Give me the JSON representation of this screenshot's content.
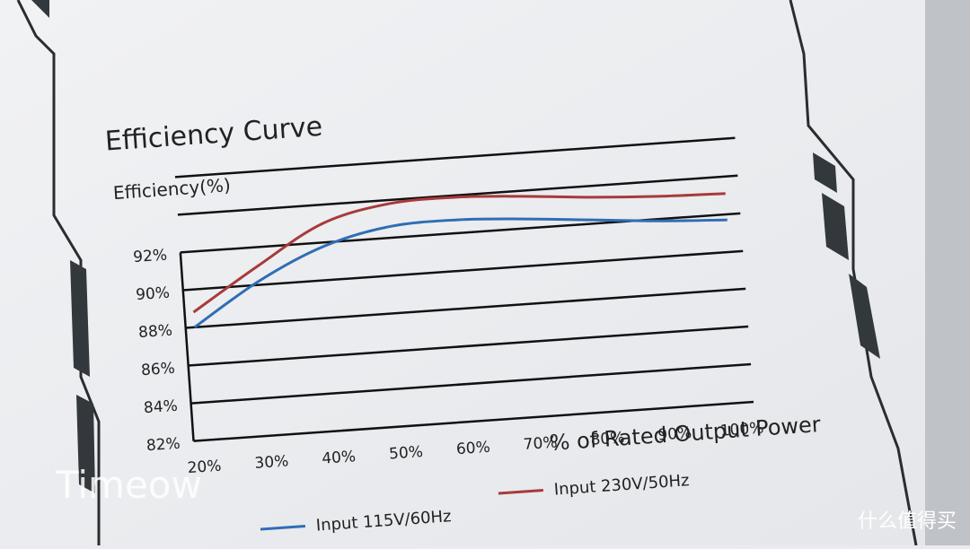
{
  "chart_data": {
    "type": "line",
    "title": "Efficiency Curve",
    "y_label": "Efficiency(%)",
    "x_label": "% of Rated Output Power",
    "categories": [
      "20%",
      "30%",
      "40%",
      "50%",
      "60%",
      "70%",
      "80%",
      "90%",
      "100%"
    ],
    "series": [
      {
        "name": "Input 115V/60Hz",
        "color": "#2f6db5",
        "values": [
          88,
          90.2,
          91.8,
          92.6,
          92.7,
          92.5,
          92.2,
          91.9,
          91.7
        ]
      },
      {
        "name": "Input 230V/50Hz",
        "color": "#a83a3a",
        "values": [
          88.8,
          91,
          93,
          93.8,
          93.9,
          93.7,
          93.4,
          93.2,
          93.1
        ]
      }
    ],
    "ylim": [
      82,
      96
    ],
    "yticks": [
      {
        "value": 82,
        "label": "82%"
      },
      {
        "value": 84,
        "label": "84%"
      },
      {
        "value": 86,
        "label": "86%"
      },
      {
        "value": 88,
        "label": "88%"
      },
      {
        "value": 90,
        "label": "90%"
      },
      {
        "value": 92,
        "label": "92%"
      },
      {
        "value": 94,
        "label": null
      },
      {
        "value": 96,
        "label": null
      }
    ],
    "grid": true
  },
  "watermarks": [
    "Timeow",
    "什么值得买"
  ]
}
